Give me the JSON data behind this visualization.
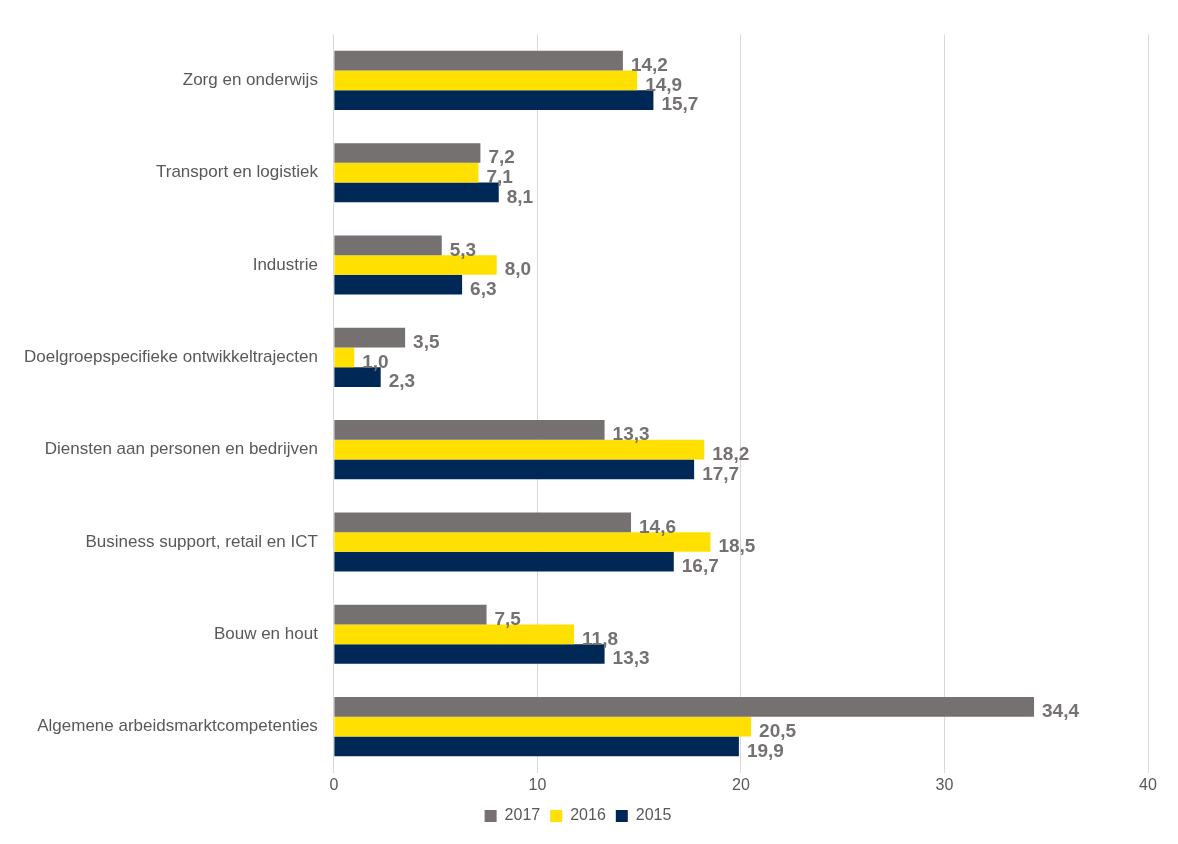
{
  "chart_data": {
    "type": "bar",
    "orientation": "horizontal",
    "categories": [
      "Zorg en onderwijs",
      "Transport en logistiek",
      "Industrie",
      "Doelgroepspecifieke ontwikkeltrajecten",
      "Diensten aan personen en bedrijven",
      "Business support, retail en ICT",
      "Bouw en hout",
      "Algemene arbeidsmarktcompetenties"
    ],
    "series": [
      {
        "name": "2017",
        "color": "#767171",
        "values": [
          14.2,
          7.2,
          5.3,
          3.5,
          13.3,
          14.6,
          7.5,
          34.4
        ],
        "value_labels": [
          "14,2",
          "7,2",
          "5,3",
          "3,5",
          "13,3",
          "14,6",
          "7,5",
          "34,4"
        ]
      },
      {
        "name": "2016",
        "color": "#ffe000",
        "values": [
          14.9,
          7.1,
          8.0,
          1.0,
          18.2,
          18.5,
          11.8,
          20.5
        ],
        "value_labels": [
          "14,9",
          "7,1",
          "8,0",
          "1,0",
          "18,2",
          "18,5",
          "11,8",
          "20,5"
        ]
      },
      {
        "name": "2015",
        "color": "#002856",
        "values": [
          15.7,
          8.1,
          6.3,
          2.3,
          17.7,
          16.7,
          13.3,
          19.9
        ],
        "value_labels": [
          "15,7",
          "8,1",
          "6,3",
          "2,3",
          "17,7",
          "16,7",
          "13,3",
          "19,9"
        ]
      }
    ],
    "xlim": [
      0,
      40
    ],
    "xticks": [
      0,
      10,
      20,
      30,
      40
    ],
    "grid": "x",
    "legend": "bottom"
  }
}
